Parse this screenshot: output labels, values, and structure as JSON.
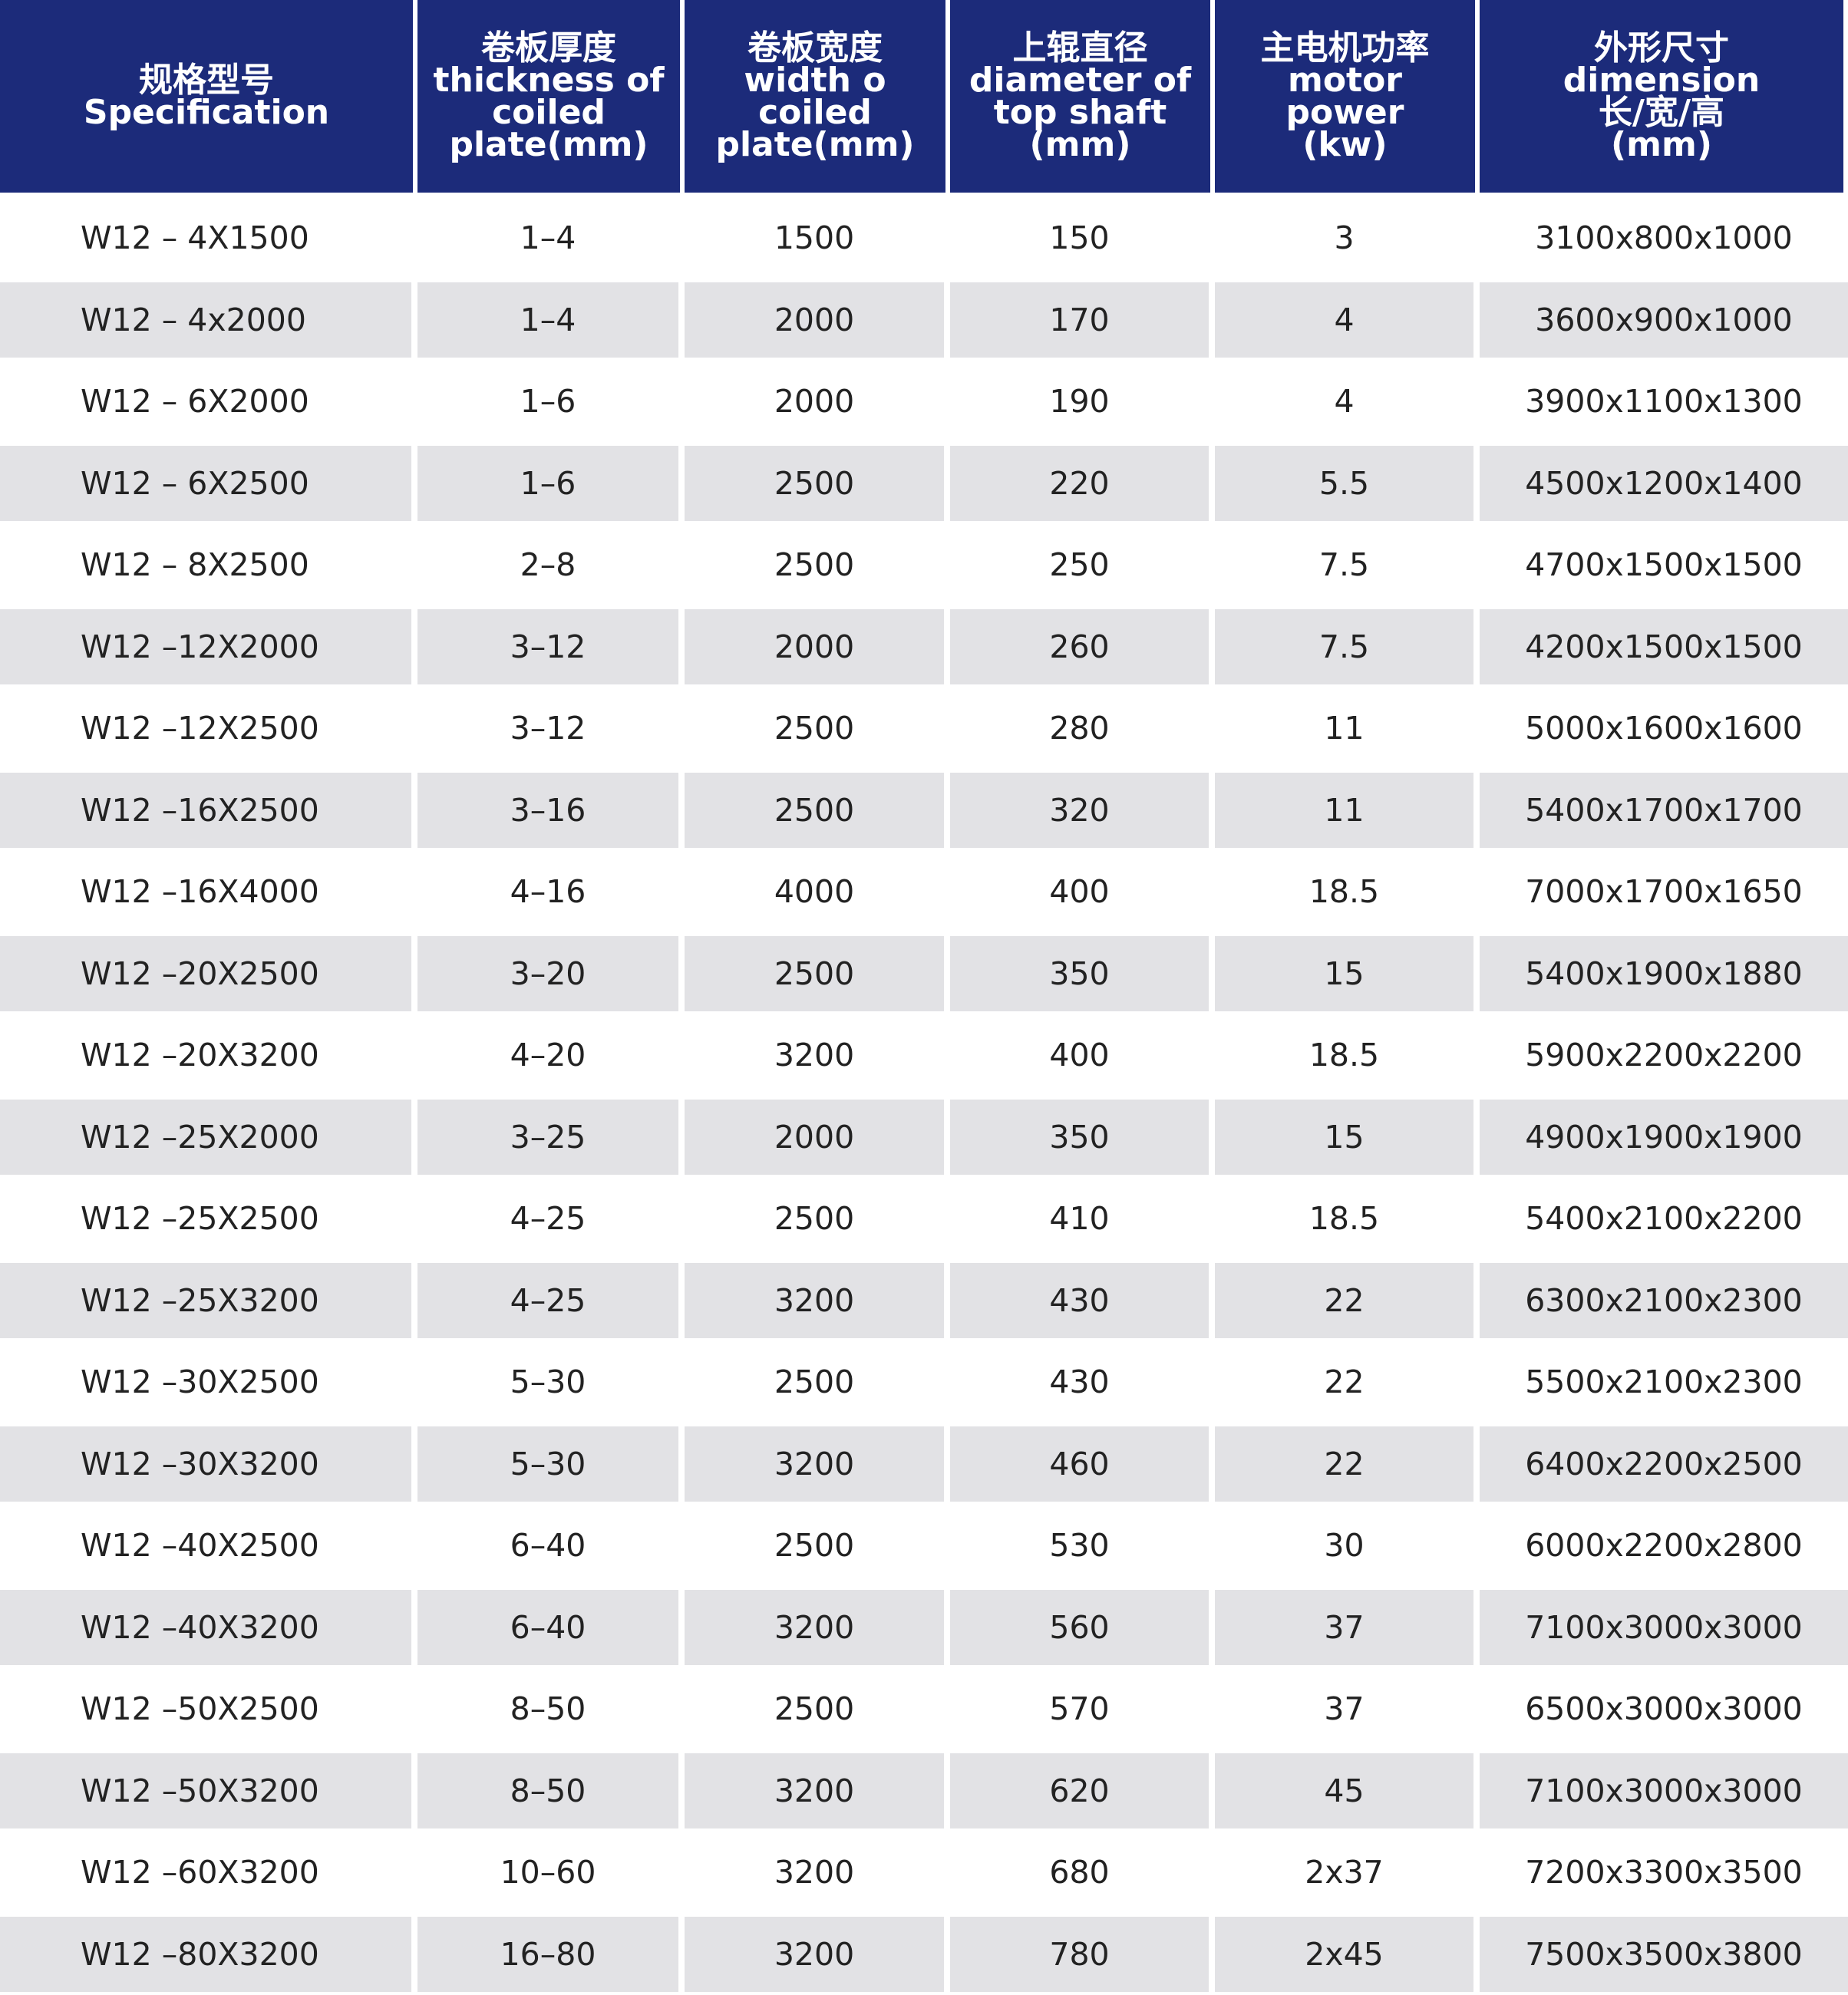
{
  "table": {
    "headers": [
      [
        "规格型号",
        "Specification"
      ],
      [
        "卷板厚度",
        "thickness of",
        "coiled",
        "plate(mm)"
      ],
      [
        "卷板宽度",
        "width o",
        "coiled",
        "plate(mm)"
      ],
      [
        "上辊直径",
        "diameter of",
        "top shaft",
        "(mm)"
      ],
      [
        "主电机功率",
        "motor",
        "power",
        "(kw)"
      ],
      [
        "外形尺寸",
        "dimension",
        "长/宽/高",
        "(mm)"
      ]
    ],
    "rows": [
      [
        "W12 – 4X1500",
        "1–4",
        "1500",
        "150",
        "3",
        "3100x800x1000"
      ],
      [
        "W12 – 4x2000",
        "1–4",
        "2000",
        "170",
        "4",
        "3600x900x1000"
      ],
      [
        "W12 – 6X2000",
        "1–6",
        "2000",
        "190",
        "4",
        "3900x1100x1300"
      ],
      [
        "W12 – 6X2500",
        "1–6",
        "2500",
        "220",
        "5.5",
        "4500x1200x1400"
      ],
      [
        "W12 – 8X2500",
        "2–8",
        "2500",
        "250",
        "7.5",
        "4700x1500x1500"
      ],
      [
        "W12 –12X2000",
        "3–12",
        "2000",
        "260",
        "7.5",
        "4200x1500x1500"
      ],
      [
        "W12 –12X2500",
        "3–12",
        "2500",
        "280",
        "11",
        "5000x1600x1600"
      ],
      [
        "W12 –16X2500",
        "3–16",
        "2500",
        "320",
        "11",
        "5400x1700x1700"
      ],
      [
        "W12 –16X4000",
        "4–16",
        "4000",
        "400",
        "18.5",
        "7000x1700x1650"
      ],
      [
        "W12 –20X2500",
        "3–20",
        "2500",
        "350",
        "15",
        "5400x1900x1880"
      ],
      [
        "W12 –20X3200",
        "4–20",
        "3200",
        "400",
        "18.5",
        "5900x2200x2200"
      ],
      [
        "W12 –25X2000",
        "3–25",
        "2000",
        "350",
        "15",
        "4900x1900x1900"
      ],
      [
        "W12 –25X2500",
        "4–25",
        "2500",
        "410",
        "18.5",
        "5400x2100x2200"
      ],
      [
        "W12 –25X3200",
        "4–25",
        "3200",
        "430",
        "22",
        "6300x2100x2300"
      ],
      [
        "W12 –30X2500",
        "5–30",
        "2500",
        "430",
        "22",
        "5500x2100x2300"
      ],
      [
        "W12 –30X3200",
        "5–30",
        "3200",
        "460",
        "22",
        "6400x2200x2500"
      ],
      [
        "W12 –40X2500",
        "6–40",
        "2500",
        "530",
        "30",
        "6000x2200x2800"
      ],
      [
        "W12 –40X3200",
        "6–40",
        "3200",
        "560",
        "37",
        "7100x3000x3000"
      ],
      [
        "W12 –50X2500",
        "8–50",
        "2500",
        "570",
        "37",
        "6500x3000x3000"
      ],
      [
        "W12 –50X3200",
        "8–50",
        "3200",
        "620",
        "45",
        "7100x3000x3000"
      ],
      [
        "W12 –60X3200",
        "10–60",
        "3200",
        "680",
        "2x37",
        "7200x3300x3500"
      ],
      [
        "W12 –80X3200",
        "16–80",
        "3200",
        "780",
        "2x45",
        "7500x3500x3800"
      ]
    ]
  }
}
